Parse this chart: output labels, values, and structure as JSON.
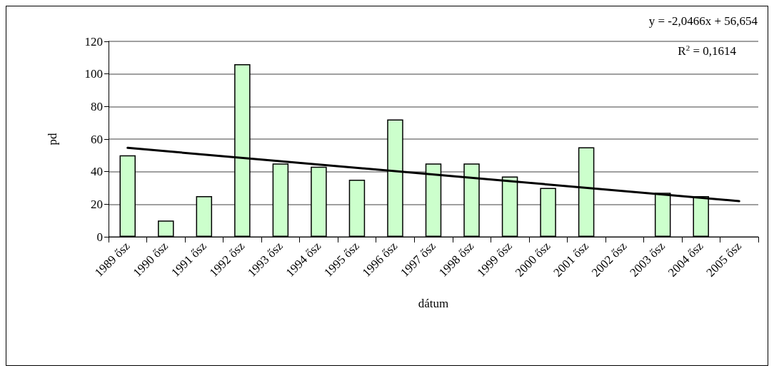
{
  "chart_data": {
    "type": "bar",
    "xlabel": "dátum",
    "ylabel": "pd",
    "categories": [
      "1989 ősz",
      "1990 ősz",
      "1991 ősz",
      "1992 ősz",
      "1993 ősz",
      "1994 ősz",
      "1995 ősz",
      "1996 ősz",
      "1997 ősz",
      "1998 ősz",
      "1999 ősz",
      "2000 ősz",
      "2001 ősz",
      "2002 ősz",
      "2003 ősz",
      "2004 ősz",
      "2005 ősz"
    ],
    "series": [
      {
        "color": "#ccffcc",
        "values": [
          50,
          10,
          25,
          106,
          45,
          43,
          35,
          72,
          45,
          45,
          37,
          30,
          55,
          null,
          27,
          25,
          null
        ]
      },
      {
        "type": "line",
        "color": "#000000",
        "x": [
          "1989 ősz",
          "2005 ősz"
        ],
        "values": [
          54.6,
          21.9
        ],
        "marker": "none",
        "line_style": "solid"
      }
    ],
    "ylim": [
      0,
      120
    ],
    "yticks": [
      0,
      20,
      40,
      60,
      80,
      100,
      120
    ],
    "grid": "y",
    "annotations": [
      "y = -2,0466x + 56,654",
      "R$^{2}$ = 0,1614"
    ]
  }
}
